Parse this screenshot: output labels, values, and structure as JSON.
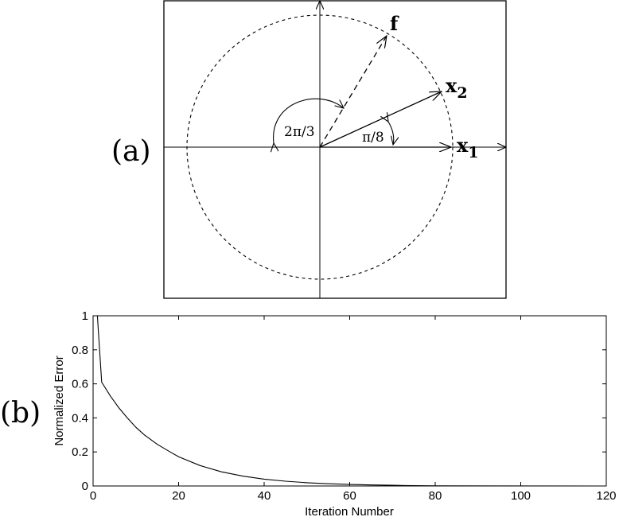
{
  "panel_a": {
    "label": "(a)",
    "vectors": {
      "f": {
        "label": "f",
        "subscript": "",
        "angle_deg": 60,
        "length": 1,
        "style": "dashed"
      },
      "x2": {
        "label": "x",
        "subscript": "2",
        "angle_deg": 22.5,
        "length": 1,
        "style": "solid"
      },
      "x1": {
        "label": "x",
        "subscript": "1",
        "angle_deg": 0,
        "length": 1,
        "style": "solid"
      }
    },
    "angle_labels": {
      "large": "2π/3",
      "small": "π/8"
    }
  },
  "panel_b": {
    "label": "(b)"
  },
  "chart_data": {
    "type": "line",
    "title": "",
    "xlabel": "Iteration Number",
    "ylabel": "Normalized Error",
    "xlim": [
      0,
      120
    ],
    "ylim": [
      0,
      1
    ],
    "xticks": [
      0,
      20,
      40,
      60,
      80,
      100,
      120
    ],
    "yticks": [
      0,
      0.2,
      0.4,
      0.6,
      0.8,
      1
    ],
    "xtick_labels": [
      "0",
      "20",
      "40",
      "60",
      "80",
      "100",
      "120"
    ],
    "ytick_labels": [
      "0",
      "0.2",
      "0.4",
      "0.6",
      "0.8",
      "1"
    ],
    "grid": false,
    "series": [
      {
        "x": [
          1,
          2,
          4,
          6,
          8,
          10,
          12,
          15,
          18,
          20,
          25,
          30,
          35,
          40,
          45,
          50,
          55,
          60,
          65,
          70,
          75,
          80
        ],
        "y": [
          1.0,
          0.61,
          0.53,
          0.46,
          0.4,
          0.345,
          0.3,
          0.245,
          0.2,
          0.172,
          0.12,
          0.083,
          0.058,
          0.04,
          0.028,
          0.019,
          0.013,
          0.009,
          0.006,
          0.004,
          0.002,
          0.001
        ]
      }
    ]
  }
}
